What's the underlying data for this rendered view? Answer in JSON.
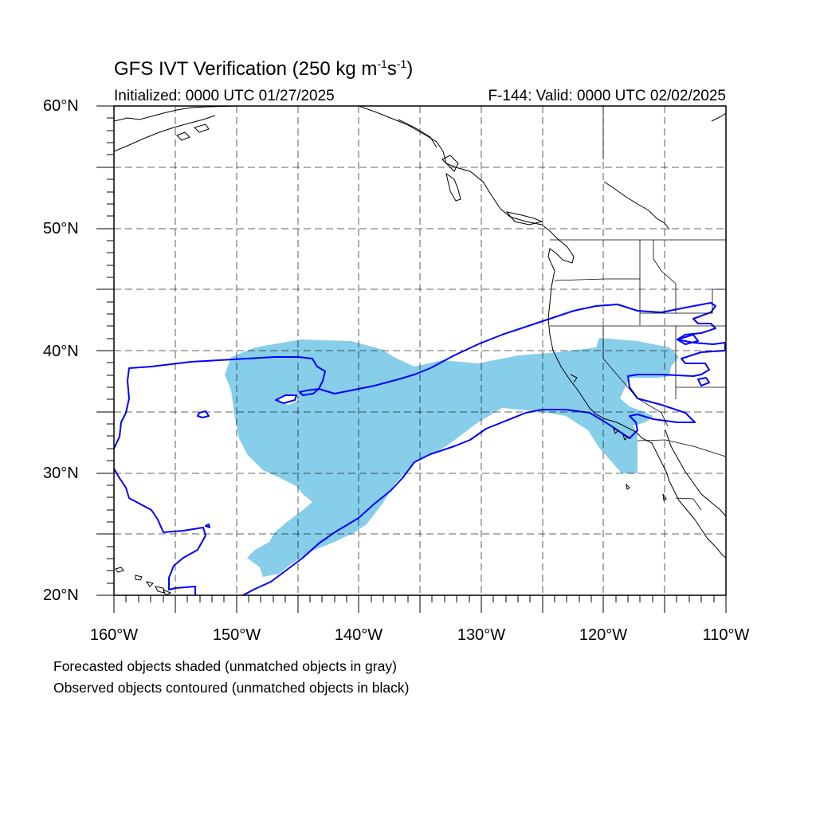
{
  "title": {
    "main": "GFS IVT Verification (250 kg m",
    "exp1": "-1",
    "mid": "s",
    "exp2": "-1",
    "end": ")"
  },
  "initialized": "Initialized: 0000 UTC 01/27/2025",
  "valid": "F-144: Valid: 0000 UTC 02/02/2025",
  "lat_labels": [
    "60°N",
    "50°N",
    "40°N",
    "30°N",
    "20°N"
  ],
  "lon_labels": [
    "160°W",
    "150°W",
    "140°W",
    "130°W",
    "120°W",
    "110°W"
  ],
  "footnotes": [
    "Forecasted objects shaded (unmatched objects in gray)",
    "Observed objects contoured (unmatched objects in black)"
  ],
  "colors": {
    "forecast_fill": "#87ceeb",
    "observed_contour": "#0000ff",
    "coastline": "#000000",
    "grid": "#000000"
  },
  "map_extent": {
    "lon": [
      -160,
      -110
    ],
    "lat": [
      20,
      60
    ]
  }
}
